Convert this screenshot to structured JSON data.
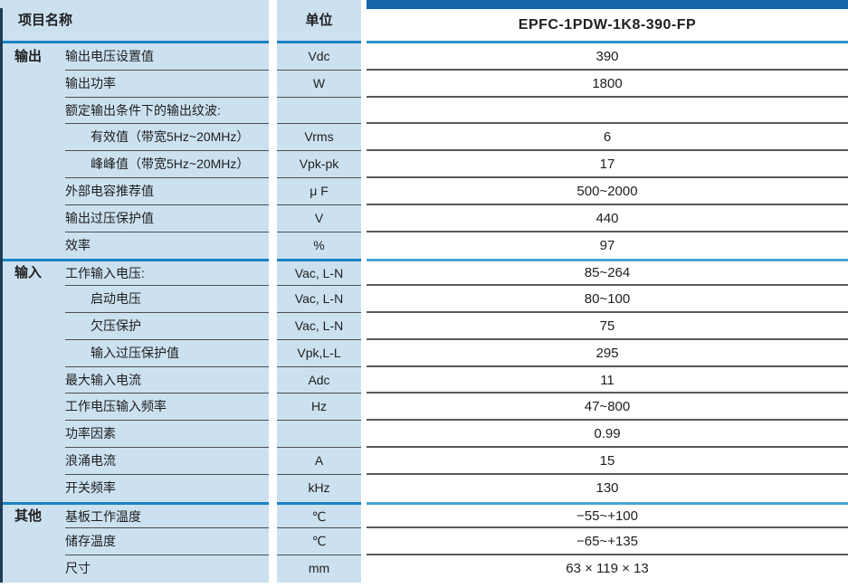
{
  "header": {
    "item_col": "项目名称",
    "unit_col": "单位",
    "model": "EPFC-1PDW-1K8-390-FP"
  },
  "groups": [
    {
      "name": "输出",
      "rows": [
        {
          "label": "输出电压设置值",
          "indent": false,
          "unit": "Vdc",
          "value": "390"
        },
        {
          "label": "输出功率",
          "indent": false,
          "unit": "W",
          "value": "1800"
        },
        {
          "label": "额定输出条件下的输出纹波:",
          "indent": false,
          "unit": "",
          "value": ""
        },
        {
          "label": "有效值（带宽5Hz~20MHz）",
          "indent": true,
          "unit": "Vrms",
          "value": "6"
        },
        {
          "label": "峰峰值（带宽5Hz~20MHz）",
          "indent": true,
          "unit": "Vpk-pk",
          "value": "17"
        },
        {
          "label": "外部电容推荐值",
          "indent": false,
          "unit": "μ F",
          "value": "500~2000"
        },
        {
          "label": "输出过压保护值",
          "indent": false,
          "unit": "V",
          "value": "440"
        },
        {
          "label": "效率",
          "indent": false,
          "unit": "%",
          "value": "97"
        }
      ]
    },
    {
      "name": "输入",
      "rows": [
        {
          "label": "工作输入电压:",
          "indent": false,
          "unit": "Vac, L-N",
          "value": "85~264"
        },
        {
          "label": "启动电压",
          "indent": true,
          "unit": "Vac, L-N",
          "value": "80~100"
        },
        {
          "label": "欠压保护",
          "indent": true,
          "unit": "Vac, L-N",
          "value": "75"
        },
        {
          "label": "输入过压保护值",
          "indent": true,
          "unit": "Vpk,L-L",
          "value": "295"
        },
        {
          "label": "最大输入电流",
          "indent": false,
          "unit": "Adc",
          "value": "11"
        },
        {
          "label": "工作电压输入频率",
          "indent": false,
          "unit": "Hz",
          "value": "47~800"
        },
        {
          "label": "功率因素",
          "indent": false,
          "unit": "",
          "value": "0.99"
        },
        {
          "label": "浪涌电流",
          "indent": false,
          "unit": "A",
          "value": "15"
        },
        {
          "label": "开关频率",
          "indent": false,
          "unit": "kHz",
          "value": "130"
        }
      ]
    },
    {
      "name": "其他",
      "rows": [
        {
          "label": "基板工作温度",
          "indent": false,
          "unit": "℃",
          "value": "−55~+100"
        },
        {
          "label": "储存温度",
          "indent": false,
          "unit": "℃",
          "value": "−65~+135"
        },
        {
          "label": "尺寸",
          "indent": false,
          "unit": "mm",
          "value": "63 × 119 × 13"
        }
      ]
    }
  ],
  "colors": {
    "light_blue_bg": "#cce1ef",
    "dark_blue_bar": "#1566ab",
    "group_line_left": "#1a82c4",
    "group_line_right": "#49a6d6",
    "header_line_right": "#2b91ca",
    "row_line_left": "#4d4d4f",
    "row_line_right": "#58585a",
    "left_edge_strip": "#1e3c55",
    "text": "#202022"
  }
}
